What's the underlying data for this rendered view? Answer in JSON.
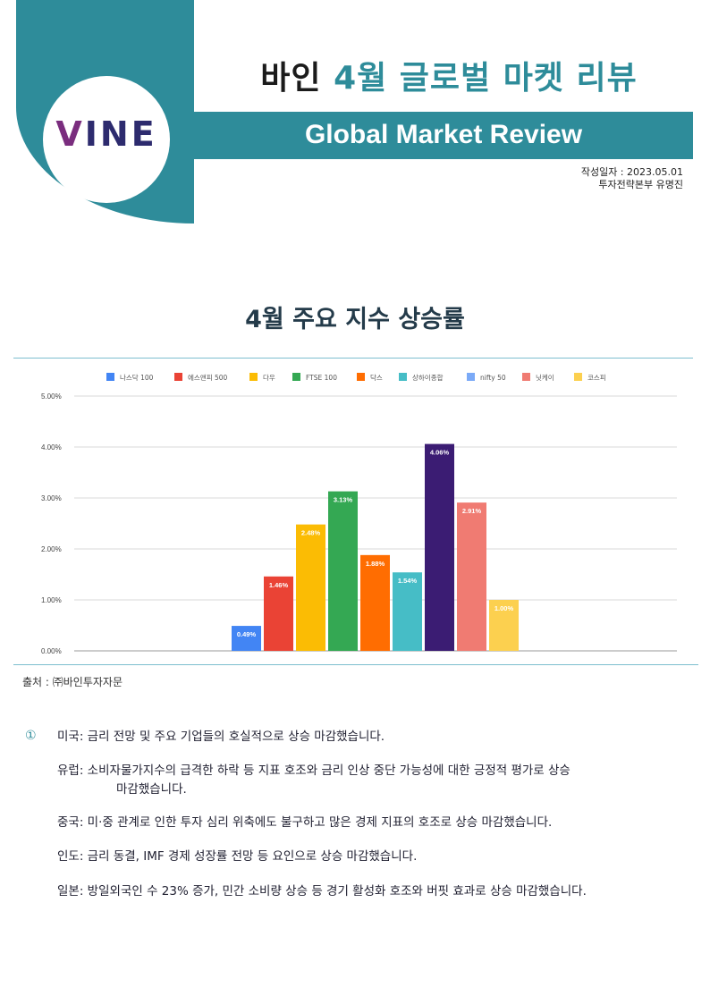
{
  "header": {
    "logo_text": "VINE",
    "title_prefix": "바인",
    "title_rest": "4월 글로벌 마켓 리뷰",
    "banner": "Global Market Review",
    "date_line": "작성일자 : 2023.05.01",
    "author_line": "투자전략본부  유명진"
  },
  "colors": {
    "accent": "#2e8c9a",
    "logo_dark": "#2d2b6e",
    "logo_purple": "#7a2d7e"
  },
  "chart_title": "4월 주요 지수 상승률",
  "chart_data": {
    "type": "bar",
    "title": "",
    "xlabel": "",
    "ylabel": "",
    "ylim": [
      0,
      5
    ],
    "yticks": [
      "0.00%",
      "1.00%",
      "2.00%",
      "3.00%",
      "4.00%",
      "5.00%"
    ],
    "grid": true,
    "legend_position": "top",
    "series": [
      {
        "name": "나스닥 100",
        "value": 0.49,
        "label": "0.49%",
        "color": "#4285f4"
      },
      {
        "name": "에스앤피 500",
        "value": 1.46,
        "label": "1.46%",
        "color": "#ea4335"
      },
      {
        "name": "다우",
        "value": 2.48,
        "label": "2.48%",
        "color": "#fbbc04"
      },
      {
        "name": "FTSE 100",
        "value": 3.13,
        "label": "3.13%",
        "color": "#34a853"
      },
      {
        "name": "닥스",
        "value": 1.88,
        "label": "1.88%",
        "color": "#ff6d01"
      },
      {
        "name": "상하이종합",
        "value": 1.54,
        "label": "1.54%",
        "color": "#46bdc6"
      },
      {
        "name": "nifty 50",
        "value": 4.06,
        "label": "4.06%",
        "color": "#3b1c73"
      },
      {
        "name": "닛케이",
        "value": 2.91,
        "label": "2.91%",
        "color": "#f07b72"
      },
      {
        "name": "코스피",
        "value": 1.0,
        "label": "1.00%",
        "color": "#fcd04f"
      }
    ],
    "legend_colors": [
      "#4285f4",
      "#ea4335",
      "#fbbc04",
      "#34a853",
      "#ff6d01",
      "#46bdc6",
      "#7baaf7",
      "#f07b72",
      "#fcd04f"
    ]
  },
  "source": "출처 : ㈜바인투자자문",
  "notes": {
    "marker": "①",
    "items": [
      {
        "text": "미국: 금리 전망 및 주요 기업들의 호실적으로 상승 마감했습니다."
      },
      {
        "text": "유럽: 소비자물가지수의 급격한 하락 등 지표 호조와 금리 인상 중단 가능성에 대한 긍정적 평가로 상승",
        "continuation": "마감했습니다."
      },
      {
        "text": "중국: 미·중 관계로 인한 투자 심리 위축에도 불구하고 많은 경제 지표의 호조로 상승 마감했습니다."
      },
      {
        "text": "인도:  금리 동결, IMF 경제 성장률 전망 등 요인으로 상승 마감했습니다."
      },
      {
        "text": "일본: 방일외국인 수 23% 증가, 민간 소비량 상승 등 경기 활성화 호조와 버핏 효과로 상승 마감했습니다."
      }
    ]
  }
}
